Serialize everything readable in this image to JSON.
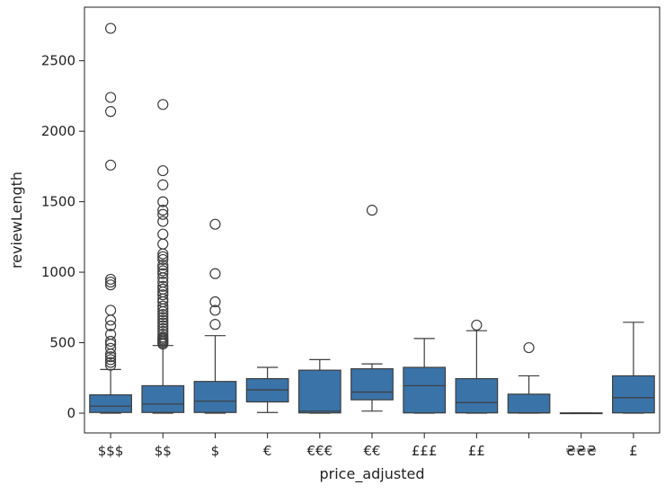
{
  "chart_data": {
    "type": "box",
    "xlabel": "price_adjusted",
    "ylabel": "reviewLength",
    "ylim": [
      -140,
      2880
    ],
    "yticks": [
      0,
      500,
      1000,
      1500,
      2000,
      2500
    ],
    "ytick_labels": [
      "0",
      "500",
      "1000",
      "1500",
      "2000",
      "2500"
    ],
    "box_color": "#3a73a8",
    "grid": false,
    "categories": [
      "$$$",
      "$$",
      "$",
      "€",
      "€€€",
      "€€",
      "£££",
      "££",
      "",
      "₴₴₴",
      "£"
    ],
    "boxes": [
      {
        "category": "$$$",
        "whisker_low": 0,
        "q1": 5,
        "median": 50,
        "q3": 130,
        "whisker_high": 310,
        "outliers": [
          340,
          360,
          380,
          400,
          420,
          460,
          490,
          510,
          560,
          620,
          660,
          730,
          910,
          930,
          950,
          1760,
          2140,
          2240,
          2730
        ]
      },
      {
        "category": "$$",
        "whisker_low": 0,
        "q1": 5,
        "median": 65,
        "q3": 195,
        "whisker_high": 480,
        "outliers": [
          490,
          500,
          510,
          520,
          530,
          540,
          560,
          580,
          600,
          620,
          640,
          660,
          680,
          700,
          720,
          740,
          760,
          790,
          810,
          840,
          860,
          880,
          900,
          930,
          960,
          990,
          1010,
          1030,
          1050,
          1090,
          1110,
          1130,
          1200,
          1270,
          1360,
          1410,
          1440,
          1500,
          1620,
          1720,
          2190
        ]
      },
      {
        "category": "$",
        "whisker_low": 0,
        "q1": 5,
        "median": 85,
        "q3": 225,
        "whisker_high": 550,
        "outliers": [
          630,
          730,
          790,
          990,
          1340
        ]
      },
      {
        "category": "€",
        "whisker_low": 5,
        "q1": 80,
        "median": 165,
        "q3": 245,
        "whisker_high": 325,
        "outliers": []
      },
      {
        "category": "€€€",
        "whisker_low": 0,
        "q1": 2,
        "median": 15,
        "q3": 305,
        "whisker_high": 380,
        "outliers": []
      },
      {
        "category": "€€",
        "whisker_low": 15,
        "q1": 95,
        "median": 150,
        "q3": 315,
        "whisker_high": 350,
        "outliers": [
          1440
        ]
      },
      {
        "category": "£££",
        "whisker_low": 0,
        "q1": 2,
        "median": 195,
        "q3": 325,
        "whisker_high": 530,
        "outliers": []
      },
      {
        "category": "££",
        "whisker_low": 0,
        "q1": 2,
        "median": 75,
        "q3": 245,
        "whisker_high": 585,
        "outliers": [
          625
        ]
      },
      {
        "category": "",
        "whisker_low": 0,
        "q1": 2,
        "median": 2,
        "q3": 135,
        "whisker_high": 265,
        "outliers": [
          465
        ]
      },
      {
        "category": "₴₴₴",
        "whisker_low": 0,
        "q1": 0,
        "median": 0,
        "q3": 2,
        "whisker_high": 2,
        "outliers": []
      },
      {
        "category": "£",
        "whisker_low": 0,
        "q1": 2,
        "median": 110,
        "q3": 265,
        "whisker_high": 645,
        "outliers": []
      }
    ]
  }
}
